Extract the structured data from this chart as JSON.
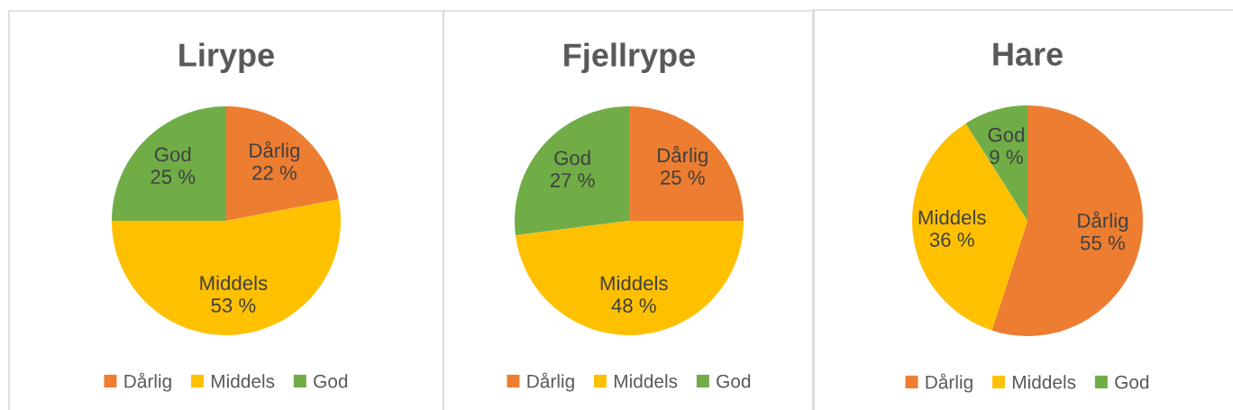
{
  "chart_data": [
    {
      "type": "pie",
      "title": "Lirype",
      "categories": [
        "Dårlig",
        "Middels",
        "God"
      ],
      "values": [
        22,
        53,
        25
      ],
      "colors": [
        "#ed7d31",
        "#ffc000",
        "#70ad47"
      ],
      "value_labels": [
        "22 %",
        "53 %",
        "25 %"
      ],
      "legend": "bottom"
    },
    {
      "type": "pie",
      "title": "Fjellrype",
      "categories": [
        "Dårlig",
        "Middels",
        "God"
      ],
      "values": [
        25,
        48,
        27
      ],
      "colors": [
        "#ed7d31",
        "#ffc000",
        "#70ad47"
      ],
      "value_labels": [
        "25 %",
        "48 %",
        "27 %"
      ],
      "legend": "bottom"
    },
    {
      "type": "pie",
      "title": "Hare",
      "categories": [
        "Dårlig",
        "Middels",
        "God"
      ],
      "values": [
        55,
        36,
        9
      ],
      "colors": [
        "#ed7d31",
        "#ffc000",
        "#70ad47"
      ],
      "value_labels": [
        "55 %",
        "36 %",
        "9 %"
      ],
      "legend": "bottom"
    }
  ]
}
